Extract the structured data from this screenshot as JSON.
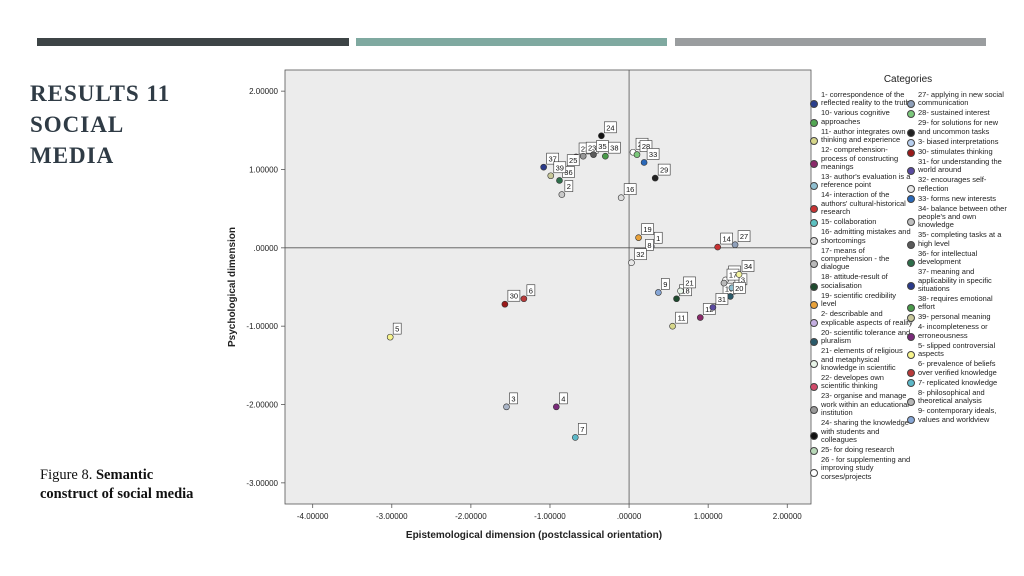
{
  "slide": {
    "title_lines": [
      "RESULTS 11",
      "SOCIAL",
      "MEDIA"
    ],
    "caption_prefix": "Figure 8. ",
    "caption_bold": "Semantic construct of social media"
  },
  "colors": {
    "band1": "#3d4446",
    "band2": "#7fa9a0",
    "band3": "#9a9d9f",
    "title": "#2f3b45",
    "plot_background": "#ececec"
  },
  "chart_data": {
    "type": "scatter",
    "xlabel": "Epistemological dimension (postclassical orientation)",
    "ylabel": "Psychological dimension",
    "xlim": [
      -4.35,
      2.3
    ],
    "ylim": [
      -3.27,
      2.27
    ],
    "x_ticks": [
      {
        "value": -4,
        "label": "-4.00000"
      },
      {
        "value": -3,
        "label": "-3.00000"
      },
      {
        "value": -2,
        "label": "-2.00000"
      },
      {
        "value": -1,
        "label": "-1.00000"
      },
      {
        "value": 0,
        "label": ".00000"
      },
      {
        "value": 1,
        "label": "1.00000"
      },
      {
        "value": 2,
        "label": "2.00000"
      }
    ],
    "y_ticks": [
      {
        "value": 2,
        "label": "2.00000"
      },
      {
        "value": 1,
        "label": "1.00000"
      },
      {
        "value": 0,
        "label": ".00000"
      },
      {
        "value": -1,
        "label": "-1.00000"
      },
      {
        "value": -2,
        "label": "-2.00000"
      },
      {
        "value": -3,
        "label": "-3.00000"
      }
    ],
    "grid": false,
    "reference_lines": {
      "x": 0,
      "y": 0
    },
    "legend_title": "Categories",
    "legend_position": "right",
    "points": [
      {
        "id": "1",
        "x": 0.28,
        "y": 0.02,
        "color": "#2b3f8c"
      },
      {
        "id": "2",
        "x": -0.85,
        "y": 0.68,
        "color": "#c9c9c9"
      },
      {
        "id": "3",
        "x": -1.55,
        "y": -2.03,
        "color": "#a9b4c6"
      },
      {
        "id": "4",
        "x": -0.92,
        "y": -2.03,
        "color": "#7a2a7a"
      },
      {
        "id": "5",
        "x": -3.02,
        "y": -1.14,
        "color": "#f7f48c"
      },
      {
        "id": "6",
        "x": -1.33,
        "y": -0.65,
        "color": "#b83a3a"
      },
      {
        "id": "7",
        "x": -0.68,
        "y": -2.42,
        "color": "#5cb8c8"
      },
      {
        "id": "8",
        "x": 0.17,
        "y": -0.07,
        "color": "#b7b7b7"
      },
      {
        "id": "9",
        "x": 0.37,
        "y": -0.57,
        "color": "#86a6d6"
      },
      {
        "id": "10",
        "x": 1.15,
        "y": -0.63,
        "color": "#53a653"
      },
      {
        "id": "11",
        "x": 0.55,
        "y": -1.0,
        "color": "#d6d68a"
      },
      {
        "id": "12",
        "x": 0.9,
        "y": -0.89,
        "color": "#8a2a6a"
      },
      {
        "id": "13",
        "x": 1.3,
        "y": -0.51,
        "color": "#8fbfd0"
      },
      {
        "id": "14",
        "x": 1.12,
        "y": 0.01,
        "color": "#c83232"
      },
      {
        "id": "15",
        "x": 1.22,
        "y": -0.41,
        "color": "#ffffff"
      },
      {
        "id": "16",
        "x": -0.1,
        "y": 0.64,
        "color": "#dddddd"
      },
      {
        "id": "17",
        "x": 1.2,
        "y": -0.45,
        "color": "#b9b9b9"
      },
      {
        "id": "18",
        "x": 0.6,
        "y": -0.65,
        "color": "#1e4a2e"
      },
      {
        "id": "19",
        "x": 0.12,
        "y": 0.13,
        "color": "#e8a13a"
      },
      {
        "id": "20",
        "x": 1.28,
        "y": -0.62,
        "color": "#2a5a6a"
      },
      {
        "id": "21",
        "x": 0.65,
        "y": -0.55,
        "color": "#e8f4e8"
      },
      {
        "id": "22",
        "x": -0.67,
        "y": 1.16,
        "color": "#d14a6a"
      },
      {
        "id": "23",
        "x": -0.58,
        "y": 1.17,
        "color": "#999999"
      },
      {
        "id": "24",
        "x": -0.35,
        "y": 1.43,
        "color": "#111111"
      },
      {
        "id": "25",
        "x": -0.82,
        "y": 1.01,
        "color": "#b8d8b8"
      },
      {
        "id": "26",
        "x": 0.05,
        "y": 1.22,
        "color": "#ffffff"
      },
      {
        "id": "27",
        "x": 1.34,
        "y": 0.04,
        "color": "#8fa0ba"
      },
      {
        "id": "28",
        "x": 0.1,
        "y": 1.19,
        "color": "#7cc87c"
      },
      {
        "id": "29",
        "x": 0.33,
        "y": 0.89,
        "color": "#222222"
      },
      {
        "id": "30",
        "x": -1.57,
        "y": -0.72,
        "color": "#9a1a1a"
      },
      {
        "id": "31",
        "x": 1.06,
        "y": -0.76,
        "color": "#5a4aa0"
      },
      {
        "id": "32",
        "x": 0.03,
        "y": -0.19,
        "color": "#e8e8e8"
      },
      {
        "id": "33",
        "x": 0.19,
        "y": 1.09,
        "color": "#2a68b8"
      },
      {
        "id": "34",
        "x": 1.39,
        "y": -0.34,
        "color": "#f4f4a0"
      },
      {
        "id": "35",
        "x": -0.45,
        "y": 1.19,
        "color": "#5a5a5a"
      },
      {
        "id": "36",
        "x": -0.88,
        "y": 0.86,
        "color": "#2e6e4a"
      },
      {
        "id": "37",
        "x": -1.08,
        "y": 1.03,
        "color": "#2a3a8a"
      },
      {
        "id": "38",
        "x": -0.3,
        "y": 1.17,
        "color": "#4a9a4a"
      },
      {
        "id": "39",
        "x": -0.99,
        "y": 0.92,
        "color": "#c8c89a"
      }
    ]
  },
  "legend": {
    "col1": [
      {
        "text": "1- correspondence of the reflected reality to the truth",
        "color": "#2b3f8c"
      },
      {
        "text": "10- various cognitive approaches",
        "color": "#53a653"
      },
      {
        "text": "11- author integrates own thinking and experience",
        "color": "#d6d68a"
      },
      {
        "text": "12- comprehension-process of constructing meanings",
        "color": "#8a2a6a"
      },
      {
        "text": "13- author's evaluation is a reference point",
        "color": "#8fbfd0"
      },
      {
        "text": "14- interaction of the authors' cultural-historical research",
        "color": "#c83232"
      },
      {
        "text": "15- collaboration",
        "color": "#5cc0c0"
      },
      {
        "text": "16- admitting mistakes and shortcomings",
        "color": "#dddddd"
      },
      {
        "text": "17- means of comprehension - the dialogue",
        "color": "#b9b9b9"
      },
      {
        "text": "18- attitude-result of socialisation",
        "color": "#1e4a2e"
      },
      {
        "text": "19- scientific credibility level",
        "color": "#e8a13a"
      },
      {
        "text": "2- describable and explicable aspects of reality",
        "color": "#c4aee0"
      },
      {
        "text": "20- scientific tolerance and pluralism",
        "color": "#2a5a6a"
      },
      {
        "text": "21- elements of religious and metaphysical knowledge in scientific",
        "color": "#e8f4e8"
      },
      {
        "text": "22- developes own scientific thinking",
        "color": "#d14a6a"
      },
      {
        "text": "23- organise and manage work within an educational institution",
        "color": "#999999"
      },
      {
        "text": "24- sharing the knowledge with students and colleagues",
        "color": "#111111"
      },
      {
        "text": "25- for doing research",
        "color": "#b8d8b8"
      },
      {
        "text": "26 - for supplementing and improving study corses/projects",
        "color": "#ffffff"
      }
    ],
    "col2": [
      {
        "text": "27- applying in new social communication",
        "color": "#8fa0ba"
      },
      {
        "text": "28- sustained interest",
        "color": "#7cc87c"
      },
      {
        "text": "29- for solutions for new and uncommon tasks",
        "color": "#222222"
      },
      {
        "text": "3- biased interpretations",
        "color": "#b8d0f0"
      },
      {
        "text": "30- stimulates thinking",
        "color": "#9a1a1a"
      },
      {
        "text": "31- for understanding the world around",
        "color": "#5a4aa0"
      },
      {
        "text": "32- encourages self-reflection",
        "color": "#e8e8e8"
      },
      {
        "text": "33- forms new interests",
        "color": "#2a68b8"
      },
      {
        "text": "34- balance between other people's and own knowledge",
        "color": "#c0c0c0"
      },
      {
        "text": "35- completing tasks at a high level",
        "color": "#5a5a5a"
      },
      {
        "text": "36- for intellectual development",
        "color": "#2e6e4a"
      },
      {
        "text": "37- meaning and applicability in specific situations",
        "color": "#2a3a8a"
      },
      {
        "text": "38- requires emotional effort",
        "color": "#4a9a4a"
      },
      {
        "text": "39- personal meaning",
        "color": "#c8c89a"
      },
      {
        "text": "4- incompleteness or erroneousness",
        "color": "#7a2a7a"
      },
      {
        "text": "5- slipped controversial aspects",
        "color": "#f7f48c"
      },
      {
        "text": "6- prevalence of beliefs over verified knowledge",
        "color": "#b83a3a"
      },
      {
        "text": "7- replicated knowledge",
        "color": "#5cb8c8"
      },
      {
        "text": "8- philosophical and theoretical analysis",
        "color": "#b7b7b7"
      },
      {
        "text": "9- contemporary ideals, values and worldview",
        "color": "#86a6d6"
      }
    ]
  }
}
